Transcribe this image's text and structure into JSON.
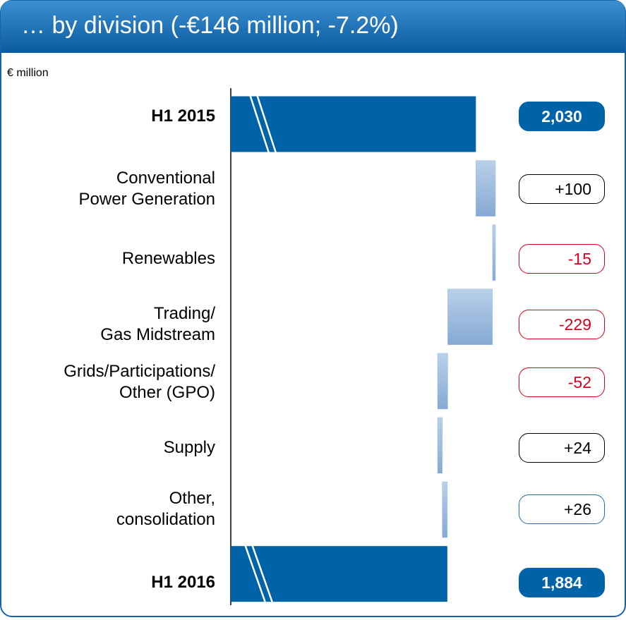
{
  "chart_data": {
    "type": "waterfall",
    "title": "… by division (-€146 million; -7.2%)",
    "subtitle": "€ million",
    "categories": [
      "H1 2015",
      "Conventional\nPower Generation",
      "Renewables",
      "Trading/\nGas Midstream",
      "Grids/Participations/\nOther (GPO)",
      "Supply",
      "Other,\nconsolidation",
      "H1 2016"
    ],
    "values": [
      2030,
      100,
      -15,
      -229,
      -52,
      24,
      26,
      1884
    ],
    "value_labels": [
      "2,030",
      "+100",
      "-15",
      "-229",
      "-52",
      "+24",
      "+26",
      "1,884"
    ],
    "total_color": "#0063a7",
    "delta_color": "#9dbddf",
    "label_colors": [
      "#0063a7",
      "#000000",
      "#d9001b",
      "#d9001b",
      "#d9001b",
      "#000000",
      "#1f6fa8",
      "#0063a7"
    ]
  }
}
